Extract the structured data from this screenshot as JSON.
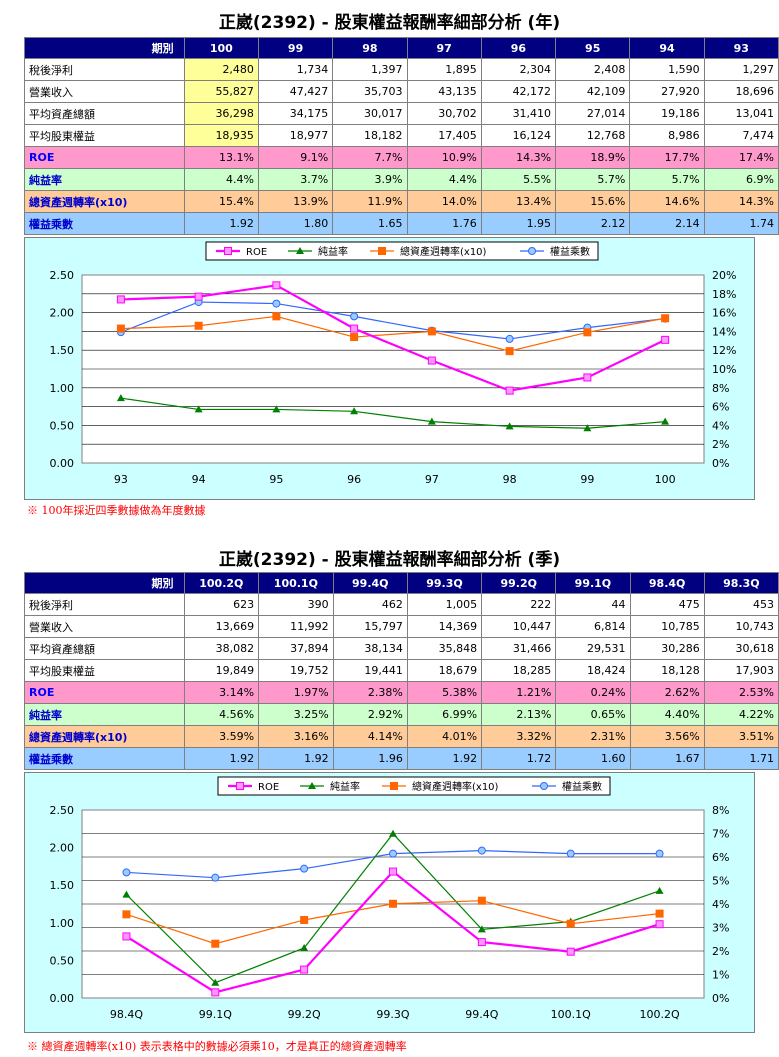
{
  "annual": {
    "title": "正崴(2392) - 股東權益報酬率細部分析 (年)",
    "period_label": "期別",
    "periods": [
      "100",
      "99",
      "98",
      "97",
      "96",
      "95",
      "94",
      "93"
    ],
    "rows": [
      {
        "label": "稅後淨利",
        "values": [
          "2,480",
          "1,734",
          "1,397",
          "1,895",
          "2,304",
          "2,408",
          "1,590",
          "1,297"
        ]
      },
      {
        "label": "營業收入",
        "values": [
          "55,827",
          "47,427",
          "35,703",
          "43,135",
          "42,172",
          "42,109",
          "27,920",
          "18,696"
        ]
      },
      {
        "label": "平均資產總額",
        "values": [
          "36,298",
          "34,175",
          "30,017",
          "30,702",
          "31,410",
          "27,014",
          "19,186",
          "13,041"
        ]
      },
      {
        "label": "平均股東權益",
        "values": [
          "18,935",
          "18,977",
          "18,182",
          "17,405",
          "16,124",
          "12,768",
          "8,986",
          "7,474"
        ]
      },
      {
        "label": "ROE",
        "values": [
          "13.1%",
          "9.1%",
          "7.7%",
          "10.9%",
          "14.3%",
          "18.9%",
          "17.7%",
          "17.4%"
        ]
      },
      {
        "label": "純益率",
        "values": [
          "4.4%",
          "3.7%",
          "3.9%",
          "4.4%",
          "5.5%",
          "5.7%",
          "5.7%",
          "6.9%"
        ]
      },
      {
        "label": "總資產週轉率(x10)",
        "values": [
          "15.4%",
          "13.9%",
          "11.9%",
          "14.0%",
          "13.4%",
          "15.6%",
          "14.6%",
          "14.3%"
        ]
      },
      {
        "label": "權益乘數",
        "values": [
          "1.92",
          "1.80",
          "1.65",
          "1.76",
          "1.95",
          "2.12",
          "2.14",
          "1.74"
        ]
      }
    ],
    "note": "※ 100年採近四季數據做為年度數據"
  },
  "quarterly": {
    "title": "正崴(2392) - 股東權益報酬率細部分析 (季)",
    "period_label": "期別",
    "periods": [
      "100.2Q",
      "100.1Q",
      "99.4Q",
      "99.3Q",
      "99.2Q",
      "99.1Q",
      "98.4Q",
      "98.3Q"
    ],
    "rows": [
      {
        "label": "稅後淨利",
        "values": [
          "623",
          "390",
          "462",
          "1,005",
          "222",
          "44",
          "475",
          "453"
        ]
      },
      {
        "label": "營業收入",
        "values": [
          "13,669",
          "11,992",
          "15,797",
          "14,369",
          "10,447",
          "6,814",
          "10,785",
          "10,743"
        ]
      },
      {
        "label": "平均資產總額",
        "values": [
          "38,082",
          "37,894",
          "38,134",
          "35,848",
          "31,466",
          "29,531",
          "30,286",
          "30,618"
        ]
      },
      {
        "label": "平均股東權益",
        "values": [
          "19,849",
          "19,752",
          "19,441",
          "18,679",
          "18,285",
          "18,424",
          "18,128",
          "17,903"
        ]
      },
      {
        "label": "ROE",
        "values": [
          "3.14%",
          "1.97%",
          "2.38%",
          "5.38%",
          "1.21%",
          "0.24%",
          "2.62%",
          "2.53%"
        ]
      },
      {
        "label": "純益率",
        "values": [
          "4.56%",
          "3.25%",
          "2.92%",
          "6.99%",
          "2.13%",
          "0.65%",
          "4.40%",
          "4.22%"
        ]
      },
      {
        "label": "總資產週轉率(x10)",
        "values": [
          "3.59%",
          "3.16%",
          "4.14%",
          "4.01%",
          "3.32%",
          "2.31%",
          "3.56%",
          "3.51%"
        ]
      },
      {
        "label": "權益乘數",
        "values": [
          "1.92",
          "1.92",
          "1.96",
          "1.92",
          "1.72",
          "1.60",
          "1.67",
          "1.71"
        ]
      }
    ],
    "note": "※ 總資產週轉率(x10) 表示表格中的數據必須乘10，才是真正的總資產週轉率"
  },
  "colors": {
    "roe": "#ff00ff",
    "net": "#008000",
    "tat": "#ff6600",
    "em": "#3366ff"
  },
  "chart_data": [
    {
      "type": "line",
      "categories": [
        "93",
        "94",
        "95",
        "96",
        "97",
        "98",
        "99",
        "100"
      ],
      "ylim_left": [
        0,
        2.5
      ],
      "ylim_right": [
        0,
        20
      ],
      "left_ticks": [
        "0.00",
        "0.50",
        "1.00",
        "1.50",
        "2.00",
        "2.50"
      ],
      "right_ticks": [
        "0%",
        "2%",
        "4%",
        "6%",
        "8%",
        "10%",
        "12%",
        "14%",
        "16%",
        "18%",
        "20%"
      ],
      "series": [
        {
          "name": "ROE",
          "axis": "right",
          "values": [
            17.4,
            17.7,
            18.9,
            14.3,
            10.9,
            7.7,
            9.1,
            13.1
          ]
        },
        {
          "name": "純益率",
          "axis": "right",
          "values": [
            6.9,
            5.7,
            5.7,
            5.5,
            4.4,
            3.9,
            3.7,
            4.4
          ]
        },
        {
          "name": "總資產週轉率(x10)",
          "axis": "right",
          "values": [
            14.3,
            14.6,
            15.6,
            13.4,
            14.0,
            11.9,
            13.9,
            15.4
          ]
        },
        {
          "name": "權益乘數",
          "axis": "left",
          "values": [
            1.74,
            2.14,
            2.12,
            1.95,
            1.76,
            1.65,
            1.8,
            1.92
          ]
        }
      ]
    },
    {
      "type": "line",
      "categories": [
        "98.4Q",
        "99.1Q",
        "99.2Q",
        "99.3Q",
        "99.4Q",
        "100.1Q",
        "100.2Q"
      ],
      "ylim_left": [
        0,
        2.5
      ],
      "ylim_right": [
        0,
        8
      ],
      "left_ticks": [
        "0.00",
        "0.50",
        "1.00",
        "1.50",
        "2.00",
        "2.50"
      ],
      "right_ticks": [
        "0%",
        "1%",
        "2%",
        "3%",
        "4%",
        "5%",
        "6%",
        "7%",
        "8%"
      ],
      "series": [
        {
          "name": "ROE",
          "axis": "right",
          "values": [
            2.62,
            0.24,
            1.21,
            5.38,
            2.38,
            1.97,
            3.14
          ]
        },
        {
          "name": "純益率",
          "axis": "right",
          "values": [
            4.4,
            0.65,
            2.13,
            6.99,
            2.92,
            3.25,
            4.56
          ]
        },
        {
          "name": "總資產週轉率(x10)",
          "axis": "right",
          "values": [
            3.56,
            2.31,
            3.32,
            4.01,
            4.14,
            3.16,
            3.59
          ]
        },
        {
          "name": "權益乘數",
          "axis": "left",
          "values": [
            1.67,
            1.6,
            1.72,
            1.92,
            1.96,
            1.92,
            1.92
          ]
        }
      ]
    }
  ]
}
